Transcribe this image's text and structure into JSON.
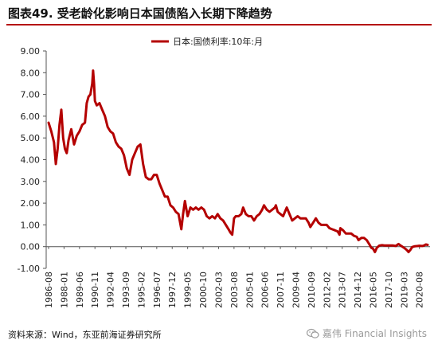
{
  "figure": {
    "title": "图表49.  受老龄化影响日本国债陷入长期下降趋势",
    "source": "资料来源：Wind，东亚前海证券研究所",
    "watermark": "嘉伟 Financial Insights",
    "watermark_icon": "wechat-icon",
    "accent_color": "#b40000"
  },
  "chart_data": {
    "type": "line",
    "title": "",
    "xlabel": "",
    "ylabel": "",
    "ylim": [
      -1.0,
      9.0
    ],
    "yticks": [
      "-1.00",
      "0.00",
      "1.00",
      "2.00",
      "3.00",
      "4.00",
      "5.00",
      "6.00",
      "7.00",
      "8.00",
      "9.00"
    ],
    "xticks": [
      "1986-08",
      "1988-01",
      "1989-06",
      "1990-11",
      "1992-04",
      "1993-09",
      "1995-02",
      "1996-07",
      "1997-12",
      "1999-05",
      "2000-10",
      "2002-03",
      "2003-08",
      "2005-01",
      "2006-06",
      "2007-11",
      "2009-04",
      "2010-09",
      "2012-02",
      "2013-07",
      "2014-12",
      "2016-05",
      "2017-10",
      "2019-03",
      "2020-08"
    ],
    "legend": "top-center",
    "grid": false,
    "series": [
      {
        "name": "日本:国债利率:10年:月",
        "color": "#b40000",
        "points": [
          [
            "1986-08",
            5.7
          ],
          [
            "1986-11",
            5.3
          ],
          [
            "1987-02",
            4.8
          ],
          [
            "1987-04",
            3.8
          ],
          [
            "1987-06",
            4.5
          ],
          [
            "1987-08",
            5.6
          ],
          [
            "1987-10",
            6.3
          ],
          [
            "1987-12",
            5.0
          ],
          [
            "1988-02",
            4.5
          ],
          [
            "1988-04",
            4.3
          ],
          [
            "1988-06",
            4.9
          ],
          [
            "1988-09",
            5.4
          ],
          [
            "1988-12",
            4.7
          ],
          [
            "1989-03",
            5.1
          ],
          [
            "1989-06",
            5.3
          ],
          [
            "1989-09",
            5.6
          ],
          [
            "1989-12",
            5.7
          ],
          [
            "1990-02",
            6.6
          ],
          [
            "1990-04",
            6.9
          ],
          [
            "1990-06",
            7.0
          ],
          [
            "1990-08",
            7.5
          ],
          [
            "1990-09",
            8.1
          ],
          [
            "1990-10",
            7.5
          ],
          [
            "1990-11",
            6.7
          ],
          [
            "1991-01",
            6.5
          ],
          [
            "1991-04",
            6.6
          ],
          [
            "1991-07",
            6.3
          ],
          [
            "1991-10",
            6.0
          ],
          [
            "1992-01",
            5.5
          ],
          [
            "1992-04",
            5.3
          ],
          [
            "1992-07",
            5.2
          ],
          [
            "1992-10",
            4.8
          ],
          [
            "1993-01",
            4.6
          ],
          [
            "1993-04",
            4.5
          ],
          [
            "1993-07",
            4.2
          ],
          [
            "1993-10",
            3.6
          ],
          [
            "1994-01",
            3.3
          ],
          [
            "1994-04",
            4.0
          ],
          [
            "1994-07",
            4.3
          ],
          [
            "1994-10",
            4.6
          ],
          [
            "1995-01",
            4.7
          ],
          [
            "1995-04",
            3.8
          ],
          [
            "1995-07",
            3.2
          ],
          [
            "1995-10",
            3.1
          ],
          [
            "1996-01",
            3.1
          ],
          [
            "1996-04",
            3.3
          ],
          [
            "1996-07",
            3.3
          ],
          [
            "1996-10",
            2.9
          ],
          [
            "1997-01",
            2.6
          ],
          [
            "1997-04",
            2.3
          ],
          [
            "1997-07",
            2.3
          ],
          [
            "1997-10",
            1.9
          ],
          [
            "1998-01",
            1.8
          ],
          [
            "1998-04",
            1.6
          ],
          [
            "1998-07",
            1.5
          ],
          [
            "1998-10",
            0.8
          ],
          [
            "1998-12",
            1.5
          ],
          [
            "1999-02",
            2.1
          ],
          [
            "1999-05",
            1.4
          ],
          [
            "1999-08",
            1.8
          ],
          [
            "1999-11",
            1.7
          ],
          [
            "2000-02",
            1.8
          ],
          [
            "2000-05",
            1.7
          ],
          [
            "2000-08",
            1.8
          ],
          [
            "2000-11",
            1.7
          ],
          [
            "2001-02",
            1.4
          ],
          [
            "2001-05",
            1.3
          ],
          [
            "2001-08",
            1.4
          ],
          [
            "2001-11",
            1.3
          ],
          [
            "2002-02",
            1.5
          ],
          [
            "2002-05",
            1.3
          ],
          [
            "2002-08",
            1.2
          ],
          [
            "2002-11",
            1.0
          ],
          [
            "2003-02",
            0.8
          ],
          [
            "2003-04",
            0.65
          ],
          [
            "2003-06",
            0.55
          ],
          [
            "2003-08",
            1.3
          ],
          [
            "2003-10",
            1.4
          ],
          [
            "2004-01",
            1.4
          ],
          [
            "2004-04",
            1.5
          ],
          [
            "2004-06",
            1.8
          ],
          [
            "2004-09",
            1.5
          ],
          [
            "2004-12",
            1.4
          ],
          [
            "2005-03",
            1.4
          ],
          [
            "2005-06",
            1.2
          ],
          [
            "2005-09",
            1.4
          ],
          [
            "2005-12",
            1.5
          ],
          [
            "2006-03",
            1.7
          ],
          [
            "2006-05",
            1.9
          ],
          [
            "2006-08",
            1.7
          ],
          [
            "2006-11",
            1.6
          ],
          [
            "2007-02",
            1.7
          ],
          [
            "2007-05",
            1.8
          ],
          [
            "2007-06",
            1.9
          ],
          [
            "2007-08",
            1.6
          ],
          [
            "2007-11",
            1.5
          ],
          [
            "2008-02",
            1.4
          ],
          [
            "2008-05",
            1.7
          ],
          [
            "2008-06",
            1.8
          ],
          [
            "2008-09",
            1.5
          ],
          [
            "2008-12",
            1.2
          ],
          [
            "2009-03",
            1.3
          ],
          [
            "2009-06",
            1.4
          ],
          [
            "2009-09",
            1.3
          ],
          [
            "2009-12",
            1.3
          ],
          [
            "2010-03",
            1.3
          ],
          [
            "2010-06",
            1.1
          ],
          [
            "2010-08",
            0.9
          ],
          [
            "2010-11",
            1.1
          ],
          [
            "2011-02",
            1.3
          ],
          [
            "2011-05",
            1.1
          ],
          [
            "2011-08",
            1.0
          ],
          [
            "2011-11",
            1.0
          ],
          [
            "2012-02",
            1.0
          ],
          [
            "2012-05",
            0.85
          ],
          [
            "2012-08",
            0.8
          ],
          [
            "2012-11",
            0.75
          ],
          [
            "2013-02",
            0.7
          ],
          [
            "2013-04",
            0.55
          ],
          [
            "2013-05",
            0.85
          ],
          [
            "2013-08",
            0.75
          ],
          [
            "2013-11",
            0.6
          ],
          [
            "2014-02",
            0.6
          ],
          [
            "2014-05",
            0.6
          ],
          [
            "2014-08",
            0.5
          ],
          [
            "2014-11",
            0.45
          ],
          [
            "2015-01",
            0.3
          ],
          [
            "2015-04",
            0.4
          ],
          [
            "2015-07",
            0.4
          ],
          [
            "2015-10",
            0.3
          ],
          [
            "2016-01",
            0.1
          ],
          [
            "2016-03",
            -0.05
          ],
          [
            "2016-05",
            -0.1
          ],
          [
            "2016-07",
            -0.25
          ],
          [
            "2016-09",
            -0.06
          ],
          [
            "2016-12",
            0.05
          ],
          [
            "2017-03",
            0.07
          ],
          [
            "2017-06",
            0.05
          ],
          [
            "2017-09",
            0.05
          ],
          [
            "2017-12",
            0.05
          ],
          [
            "2018-03",
            0.05
          ],
          [
            "2018-06",
            0.03
          ],
          [
            "2018-09",
            0.12
          ],
          [
            "2018-12",
            0.03
          ],
          [
            "2019-03",
            -0.05
          ],
          [
            "2019-06",
            -0.15
          ],
          [
            "2019-08",
            -0.25
          ],
          [
            "2019-10",
            -0.15
          ],
          [
            "2019-12",
            -0.02
          ],
          [
            "2020-03",
            0.02
          ],
          [
            "2020-06",
            0.03
          ],
          [
            "2020-08",
            0.04
          ],
          [
            "2020-11",
            0.03
          ],
          [
            "2021-01",
            0.05
          ],
          [
            "2021-03",
            0.1
          ],
          [
            "2021-05",
            0.08
          ]
        ]
      }
    ]
  }
}
